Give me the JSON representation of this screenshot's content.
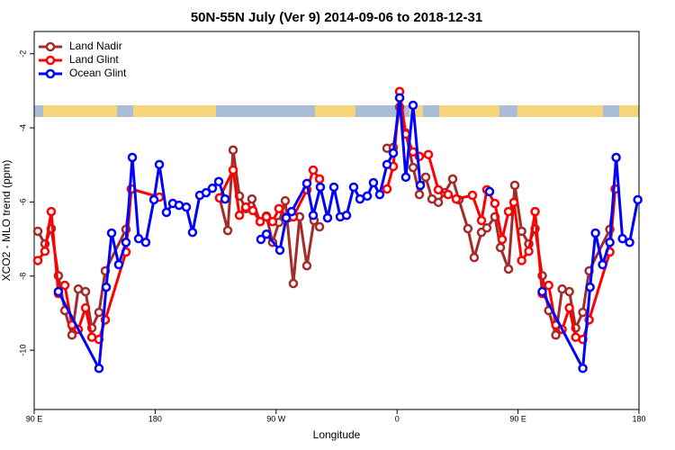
{
  "chart_data": {
    "type": "line",
    "title": "50N-55N July (Ver 9)   2014-09-06 to 2018-12-31",
    "x_label": "Longitude",
    "y_label": "XCO2 - MLO trend (ppm)",
    "xlim": [
      90,
      540
    ],
    "ylim": [
      -11.6,
      -1.4
    ],
    "xticks": [
      {
        "value": 90,
        "label": "90 E"
      },
      {
        "value": 180,
        "label": "180"
      },
      {
        "value": 270,
        "label": "90 W"
      },
      {
        "value": 360,
        "label": "0"
      },
      {
        "value": 450,
        "label": "90 E"
      },
      {
        "value": 540,
        "label": "180"
      }
    ],
    "yticks": [
      -2,
      -4,
      -6,
      -8,
      -10
    ],
    "legend": "top-left",
    "series": [
      {
        "name": "Land Nadir",
        "color": "#a52a2a",
        "x": [
          92.7,
          98,
          102.7,
          108,
          112.8,
          118.1,
          122.8,
          128.2,
          132.9,
          138.2,
          142.9,
          158.3,
          162.3,
          195,
          227.9,
          234,
          238,
          242.7,
          247.4,
          252,
          258.1,
          262.8,
          267.4,
          272.1,
          276.8,
          282.8,
          287.5,
          292.9,
          298.2,
          302.3,
          327,
          352.5,
          357.2,
          361.9,
          366.5,
          371.9,
          376.6,
          381.3,
          386,
          390.7,
          395.3,
          401.4,
          406,
          412.7,
          417.4,
          422.8,
          426.8,
          432.8,
          436.9,
          442.9,
          447.6,
          452.7,
          458,
          462.7,
          468,
          472.8,
          478.1,
          482.8,
          488.2,
          492.9,
          498.2,
          502.9,
          518.3,
          522.3
        ],
        "values": [
          -6.79,
          -7.13,
          -6.72,
          -7.99,
          -8.93,
          -9.59,
          -8.35,
          -8.42,
          -9.4,
          -8.98,
          -7.86,
          -6.74,
          -5.65,
          null,
          -5.89,
          -6.77,
          -4.6,
          -5.84,
          -6.18,
          -5.92,
          -6.53,
          -6.38,
          -7.09,
          -6.55,
          -5.97,
          -8.2,
          -6.4,
          -7.72,
          -6.5,
          -6.67,
          null,
          -4.55,
          -4.53,
          -3.44,
          -4.14,
          -5.07,
          -5.8,
          -5.33,
          -5.92,
          -6.01,
          -5.75,
          -5.38,
          -5.94,
          -6.72,
          -7.5,
          -6.82,
          -6.7,
          -6.4,
          -7.23,
          -7.81,
          -5.55,
          -6.79,
          -7.13,
          -6.72,
          -7.99,
          -8.93,
          -9.59,
          -8.35,
          -8.42,
          -9.4,
          -8.98,
          -7.86,
          -6.74,
          -5.65
        ]
      },
      {
        "name": "Land Glint",
        "color": "#ff0000",
        "x": [
          92.7,
          98,
          102.7,
          108,
          112.8,
          118.1,
          122.8,
          128.2,
          132.9,
          138.2,
          142.9,
          158.3,
          162.3,
          183.1,
          205,
          227.9,
          238,
          242.7,
          247.4,
          252.7,
          258.1,
          262.8,
          267.4,
          272.1,
          278.8,
          282.8,
          292.9,
          297.6,
          302.3,
          327,
          352.5,
          357.2,
          361.9,
          366.5,
          371.9,
          376.6,
          383.3,
          390.7,
          398,
          404,
          416.1,
          422.8,
          426.8,
          432.8,
          438.2,
          442.9,
          446.9,
          452.7,
          458,
          462.7,
          468,
          472.8,
          478.1,
          482.8,
          488.2,
          492.9,
          498.2,
          502.9,
          518.3,
          522.3
        ],
        "values": [
          -7.58,
          -7.33,
          -6.26,
          -8.47,
          -8.25,
          -9.32,
          -9.44,
          -8.86,
          -9.65,
          -9.71,
          -9.18,
          -7.35,
          -5.65,
          -5.87,
          null,
          -5.89,
          -5.14,
          -6.36,
          -6.14,
          -6.23,
          -6.53,
          -6.4,
          -6.53,
          -6.18,
          -6.43,
          -6.4,
          -5.67,
          -5.14,
          -5.38,
          null,
          -5.65,
          -5.04,
          -3.02,
          -4.17,
          -4.65,
          -4.77,
          -4.72,
          -5.67,
          -5.8,
          -5.92,
          -5.82,
          -6.5,
          -5.67,
          -6.04,
          -7.01,
          -6.26,
          -6.01,
          -7.58,
          -7.33,
          -6.26,
          -8.47,
          -8.25,
          -9.32,
          -9.44,
          -8.86,
          -9.65,
          -9.71,
          -9.18,
          -7.35,
          -5.65
        ]
      },
      {
        "name": "Ocean Glint",
        "color": "#0000ff",
        "x": [
          108,
          138.2,
          143.6,
          147.6,
          152.9,
          158.3,
          163,
          167.7,
          173,
          179.1,
          183.1,
          188.4,
          193.1,
          197.8,
          203.2,
          207.8,
          213.2,
          217.9,
          222.6,
          227.3,
          232,
          245,
          258.7,
          262.8,
          272.8,
          277.5,
          281.5,
          292.9,
          297.6,
          302.9,
          308.3,
          313,
          317.7,
          322.4,
          327.7,
          332.4,
          337.8,
          342.4,
          347.1,
          352.5,
          357.2,
          361.9,
          366.5,
          371.9,
          377.3,
          400,
          428.8,
          445,
          468,
          498.2,
          503.6,
          507.6,
          512.9,
          518.3,
          523,
          527.7,
          533,
          539.1
        ],
        "values": [
          -8.42,
          -10.49,
          -8.3,
          -6.84,
          -7.69,
          -7.09,
          -4.8,
          -6.99,
          -7.09,
          -5.94,
          -4.99,
          -6.28,
          -6.04,
          -6.09,
          -6.14,
          -6.82,
          -5.82,
          -5.75,
          -5.63,
          -5.45,
          -5.92,
          null,
          -7.01,
          -6.87,
          -7.3,
          -6.43,
          -6.26,
          -5.5,
          -6.36,
          -5.6,
          -6.43,
          -5.6,
          -6.4,
          -6.36,
          -5.6,
          -5.92,
          -5.84,
          -5.48,
          -5.8,
          -4.99,
          -4.68,
          -3.19,
          -5.33,
          -3.39,
          -5.55,
          null,
          -5.72,
          null,
          -8.42,
          -10.49,
          -8.3,
          -6.84,
          -7.69,
          -7.09,
          -4.8,
          -6.99,
          -7.09,
          -5.94
        ]
      }
    ]
  }
}
